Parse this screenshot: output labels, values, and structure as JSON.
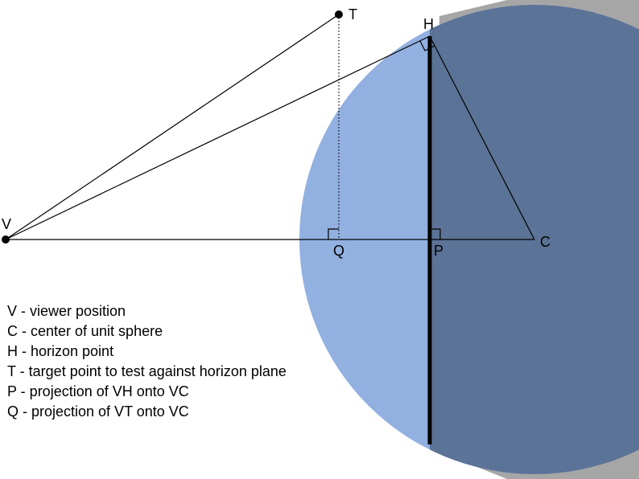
{
  "diagram": {
    "points": {
      "V": "V",
      "T": "T",
      "H": "H",
      "C": "C",
      "P": "P",
      "Q": "Q"
    },
    "colors": {
      "background": "#ffffff",
      "sphere_lit": "#92b0e0",
      "sphere_dark": "#5b7396",
      "shadow": "#a6a6a6",
      "lines": "#000000"
    }
  },
  "legend": [
    "V - viewer position",
    "C - center of unit sphere",
    "H - horizon point",
    "T - target point to test against horizon plane",
    "P - projection of VH onto VC",
    "Q - projection of VT onto VC"
  ]
}
